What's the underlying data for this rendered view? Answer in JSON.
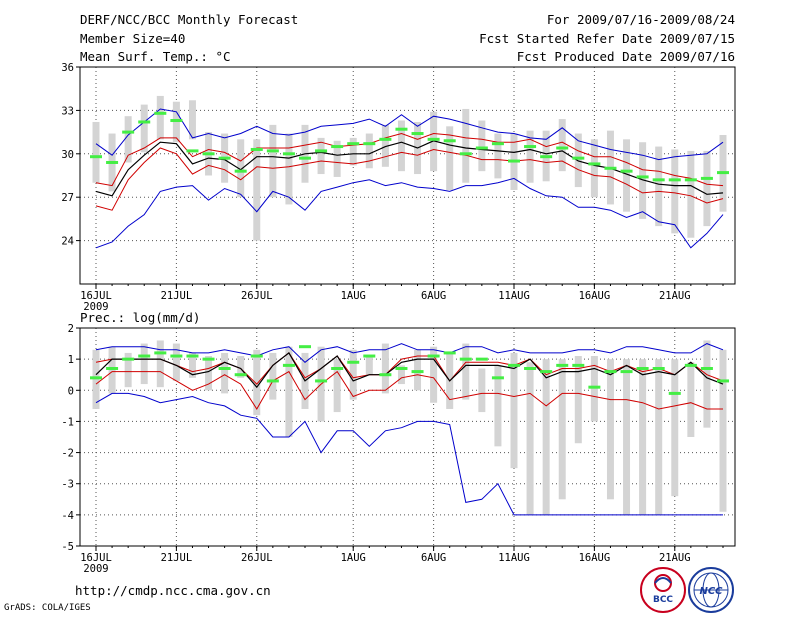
{
  "header": {
    "title": "DERF/NCC/BCC Monthly Forecast",
    "member_size": "Member Size=40",
    "variable_temp": "Mean Surf. Temp.: °C",
    "period": "For 2009/07/16-2009/08/24",
    "started": "Fcst Started Refer Date 2009/07/15",
    "produced": "Fcst Produced Date 2009/07/16"
  },
  "footer": {
    "url": "http://cmdp.ncc.cma.gov.cn",
    "grads": "GrADS: COLA/IGES",
    "logo_left_text": "BCC",
    "logo_right_text": "NCC"
  },
  "colors": {
    "box": "#d4d4d4",
    "mean": "#000000",
    "std": "#d00000",
    "range": "#0000cc",
    "median": "#44ee44",
    "grid": "#555555"
  },
  "chart_data": [
    {
      "type": "box",
      "name": "temperature",
      "title": "Mean Surf. Temp.: °C",
      "ylabel": "°C",
      "ylim": [
        21,
        36
      ],
      "yticks": [
        24,
        27,
        30,
        33,
        36
      ],
      "x_day_count": 40,
      "x_tick_days": [
        0,
        5,
        10,
        16,
        21,
        26,
        31,
        36
      ],
      "x_tick_labels": [
        "16JUL",
        "21JUL",
        "26JUL",
        "1AUG",
        "6AUG",
        "11AUG",
        "16AUG",
        "21AUG"
      ],
      "x_year_label": "2009",
      "box_low": [
        28.0,
        27.4,
        29.4,
        30.1,
        31.0,
        30.8,
        31.0,
        28.5,
        28.0,
        27.0,
        24.0,
        27.0,
        26.5,
        28.0,
        28.6,
        28.4,
        29.2,
        29.0,
        29.1,
        28.8,
        28.6,
        28.8,
        27.5,
        28.0,
        28.8,
        28.3,
        27.5,
        28.0,
        28.1,
        28.8,
        27.7,
        27.0,
        26.5,
        26.0,
        25.5,
        25.0,
        24.5,
        24.2,
        25.0,
        26.0
      ],
      "box_high": [
        32.2,
        31.4,
        32.6,
        33.4,
        34.0,
        33.6,
        33.7,
        31.5,
        31.4,
        31.0,
        31.0,
        32.0,
        31.4,
        32.0,
        31.1,
        30.9,
        31.1,
        31.4,
        32.0,
        32.3,
        32.2,
        32.9,
        31.9,
        33.1,
        32.3,
        31.4,
        31.4,
        31.6,
        31.6,
        32.4,
        31.4,
        31.0,
        31.6,
        31.0,
        30.8,
        30.5,
        30.3,
        30.2,
        30.2,
        31.3
      ],
      "median": [
        29.8,
        29.4,
        31.5,
        32.2,
        32.8,
        32.3,
        30.2,
        30.0,
        29.7,
        28.8,
        30.3,
        30.2,
        30.0,
        29.7,
        30.2,
        30.5,
        30.7,
        30.7,
        31.0,
        31.7,
        31.4,
        31.0,
        30.9,
        30.0,
        30.4,
        30.7,
        29.5,
        30.5,
        29.8,
        30.4,
        29.7,
        29.3,
        29.0,
        28.8,
        28.4,
        28.2,
        28.2,
        28.2,
        28.3,
        28.7
      ],
      "mean": [
        27.4,
        27.1,
        28.9,
        29.9,
        30.8,
        30.7,
        29.3,
        29.7,
        29.6,
        28.9,
        29.8,
        29.8,
        29.7,
        30.0,
        30.1,
        29.9,
        30.0,
        30.0,
        30.5,
        30.8,
        30.4,
        30.9,
        30.6,
        30.4,
        30.3,
        30.2,
        30.1,
        30.3,
        30.0,
        30.2,
        29.5,
        29.2,
        29.0,
        28.6,
        28.2,
        27.9,
        27.8,
        27.8,
        27.2,
        27.3
      ],
      "std_high": [
        28.0,
        27.8,
        29.9,
        30.4,
        31.1,
        31.1,
        29.8,
        30.3,
        30.1,
        29.5,
        30.4,
        30.4,
        30.4,
        30.6,
        30.8,
        30.5,
        30.6,
        30.7,
        31.1,
        31.4,
        31.0,
        31.4,
        31.3,
        31.1,
        31.0,
        30.8,
        30.8,
        31.0,
        30.5,
        30.8,
        30.2,
        29.8,
        29.8,
        29.4,
        28.9,
        28.8,
        28.5,
        28.3,
        27.9,
        27.8
      ],
      "std_low": [
        26.4,
        26.1,
        28.2,
        29.4,
        30.4,
        30.0,
        28.6,
        29.2,
        28.9,
        28.2,
        29.1,
        29.0,
        29.1,
        29.3,
        29.5,
        29.4,
        29.3,
        29.5,
        29.8,
        30.1,
        29.9,
        30.3,
        30.1,
        29.9,
        29.6,
        29.6,
        29.5,
        29.6,
        29.4,
        29.5,
        28.9,
        28.5,
        28.4,
        27.9,
        27.3,
        27.4,
        27.3,
        27.1,
        26.6,
        26.9
      ],
      "max": [
        30.7,
        29.9,
        31.3,
        32.2,
        33.1,
        32.9,
        31.1,
        31.4,
        31.1,
        31.4,
        31.9,
        31.4,
        31.3,
        31.5,
        31.9,
        32.0,
        32.1,
        32.4,
        31.9,
        32.7,
        31.9,
        32.6,
        32.4,
        32.1,
        31.8,
        31.5,
        31.4,
        31.1,
        31.0,
        31.8,
        30.9,
        30.6,
        30.3,
        30.1,
        29.9,
        29.6,
        29.8,
        29.9,
        30.0,
        30.8
      ],
      "min": [
        23.5,
        23.9,
        25.0,
        25.8,
        27.4,
        27.7,
        27.8,
        26.8,
        27.6,
        27.2,
        26.0,
        27.4,
        27.0,
        26.1,
        27.4,
        27.7,
        28.0,
        28.2,
        27.8,
        28.0,
        27.7,
        27.6,
        27.4,
        27.8,
        27.8,
        28.0,
        28.3,
        27.6,
        27.1,
        27.0,
        26.3,
        26.3,
        26.1,
        25.6,
        26.0,
        25.3,
        25.1,
        23.5,
        24.5,
        25.8
      ]
    },
    {
      "type": "box",
      "name": "precipitation",
      "title": "Prec.: log(mm/d)",
      "ylabel": "log(mm/d)",
      "ylim": [
        -5,
        2
      ],
      "yticks": [
        -5,
        -4,
        -3,
        -2,
        -1,
        0,
        1,
        2
      ],
      "x_day_count": 40,
      "x_tick_days": [
        0,
        5,
        10,
        16,
        21,
        26,
        31,
        36
      ],
      "x_tick_labels": [
        "16JUL",
        "21JUL",
        "26JUL",
        "1AUG",
        "6AUG",
        "11AUG",
        "16AUG",
        "21AUG"
      ],
      "x_year_label": "2009",
      "box_low": [
        -0.6,
        -0.1,
        0.1,
        0.2,
        0.1,
        0.3,
        0.4,
        0.0,
        -0.1,
        0.4,
        -0.8,
        -0.3,
        -1.5,
        -0.6,
        -1.0,
        -0.7,
        -0.3,
        0.5,
        -0.1,
        0.2,
        0.0,
        -0.4,
        -0.6,
        -0.3,
        -0.7,
        -1.8,
        -2.5,
        -4.0,
        -4.0,
        -3.5,
        -1.7,
        -1.0,
        -3.5,
        -4.0,
        -4.0,
        -4.0,
        -3.4,
        -1.5,
        -1.2,
        -3.9
      ],
      "box_high": [
        1.3,
        1.4,
        1.2,
        1.5,
        1.6,
        1.5,
        1.2,
        1.1,
        1.2,
        1.1,
        1.3,
        1.2,
        1.4,
        1.2,
        1.4,
        1.0,
        1.3,
        1.1,
        1.5,
        0.8,
        1.3,
        1.4,
        1.2,
        1.5,
        0.7,
        0.8,
        1.2,
        0.9,
        1.0,
        1.0,
        1.1,
        1.1,
        1.0,
        1.0,
        1.0,
        1.0,
        1.0,
        0.9,
        1.6,
        1.3
      ],
      "median": [
        0.4,
        0.7,
        1.0,
        1.1,
        1.2,
        1.1,
        1.1,
        1.0,
        0.7,
        0.5,
        1.1,
        0.3,
        0.8,
        1.4,
        0.3,
        0.7,
        0.9,
        1.1,
        0.5,
        0.7,
        0.6,
        1.1,
        1.2,
        1.0,
        1.0,
        0.4,
        0.8,
        0.7,
        0.6,
        0.8,
        0.8,
        0.1,
        0.6,
        0.6,
        0.7,
        0.7,
        -0.1,
        0.8,
        0.7,
        0.3
      ],
      "mean": [
        0.5,
        1.0,
        1.0,
        1.0,
        1.0,
        0.8,
        0.5,
        0.6,
        0.9,
        0.7,
        0.1,
        0.8,
        1.2,
        0.3,
        0.7,
        1.1,
        0.3,
        0.5,
        0.5,
        0.9,
        1.0,
        1.0,
        0.3,
        0.8,
        0.8,
        0.8,
        0.7,
        1.0,
        0.4,
        0.6,
        0.6,
        0.7,
        0.5,
        0.8,
        0.5,
        0.6,
        0.5,
        0.9,
        0.4,
        0.2
      ],
      "std_high": [
        0.9,
        1.0,
        1.0,
        1.0,
        1.0,
        0.8,
        0.6,
        0.7,
        0.9,
        0.7,
        0.2,
        0.8,
        1.2,
        0.4,
        0.7,
        1.1,
        0.4,
        0.5,
        0.5,
        1.0,
        1.1,
        1.1,
        0.3,
        0.9,
        0.9,
        0.9,
        0.8,
        1.0,
        0.5,
        0.7,
        0.7,
        0.8,
        0.6,
        0.8,
        0.6,
        0.7,
        0.5,
        0.9,
        0.5,
        0.3
      ],
      "std_low": [
        0.2,
        0.6,
        0.6,
        0.6,
        0.6,
        0.3,
        0.0,
        0.2,
        0.5,
        0.2,
        -0.6,
        0.3,
        0.6,
        -0.3,
        0.2,
        0.6,
        -0.2,
        0.0,
        0.0,
        0.4,
        0.5,
        0.4,
        -0.3,
        -0.2,
        -0.1,
        -0.1,
        -0.2,
        -0.1,
        -0.5,
        -0.1,
        -0.1,
        -0.2,
        -0.3,
        -0.3,
        -0.4,
        -0.6,
        -0.5,
        -0.4,
        -0.6,
        -0.6
      ],
      "max": [
        1.3,
        1.4,
        1.4,
        1.4,
        1.3,
        1.3,
        1.2,
        1.2,
        1.3,
        1.2,
        1.1,
        1.3,
        1.4,
        0.9,
        1.3,
        1.4,
        1.2,
        1.3,
        1.3,
        1.5,
        1.3,
        1.3,
        1.2,
        1.4,
        1.4,
        1.2,
        1.3,
        1.2,
        1.2,
        1.2,
        1.3,
        1.3,
        1.2,
        1.4,
        1.4,
        1.3,
        1.2,
        1.2,
        1.5,
        1.3
      ],
      "min": [
        -0.4,
        -0.1,
        -0.1,
        -0.2,
        -0.4,
        -0.3,
        -0.2,
        -0.4,
        -0.5,
        -0.8,
        -0.9,
        -1.5,
        -1.5,
        -1.0,
        -2.0,
        -1.3,
        -1.3,
        -1.8,
        -1.3,
        -1.2,
        -1.0,
        -1.0,
        -1.1,
        -3.6,
        -3.5,
        -3.0,
        -4.0,
        -4.0,
        -4.0,
        -4.0,
        -4.0,
        -4.0,
        -4.0,
        -4.0,
        -4.0,
        -4.0,
        -4.0,
        -4.0,
        -4.0,
        -4.0
      ]
    }
  ]
}
